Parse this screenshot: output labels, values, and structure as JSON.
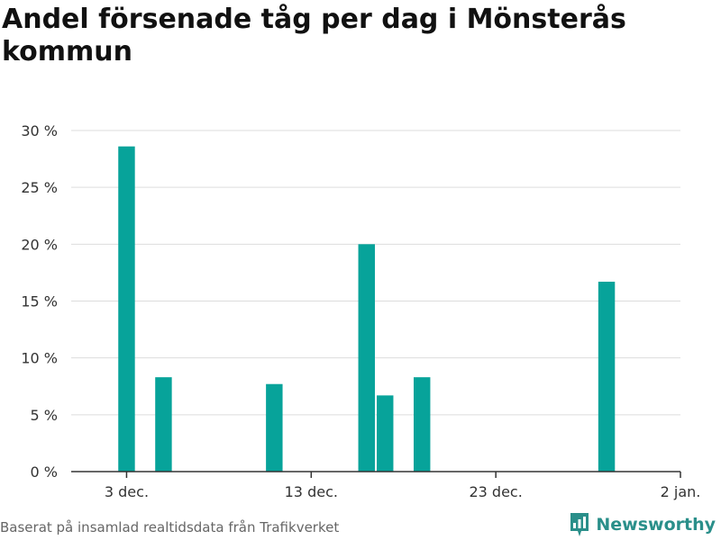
{
  "title": "Andel försenade tåg per dag i Mönsterås kommun",
  "source": "Baserat på insamlad realtidsdata från Trafikverket",
  "brand": "Newsworthy",
  "colors": {
    "bar": "#07a39a",
    "grid": "#dddddd",
    "axis": "#333333",
    "brand": "#2a8f8a"
  },
  "chart_data": {
    "type": "bar",
    "title": "Andel försenade tåg per dag i Mönsterås kommun",
    "xlabel": "",
    "ylabel": "",
    "x_start": "2024-11-30",
    "x_end": "2025-01-02",
    "x_ticks": [
      {
        "date": "2024-12-03",
        "label": "3 dec."
      },
      {
        "date": "2024-12-13",
        "label": "13 dec."
      },
      {
        "date": "2024-12-23",
        "label": "23 dec."
      },
      {
        "date": "2025-01-02",
        "label": "2 jan."
      }
    ],
    "ylim": [
      0,
      30
    ],
    "y_ticks": [
      {
        "value": 0,
        "label": "0 %"
      },
      {
        "value": 5,
        "label": "5 %"
      },
      {
        "value": 10,
        "label": "10 %"
      },
      {
        "value": 15,
        "label": "15 %"
      },
      {
        "value": 20,
        "label": "20 %"
      },
      {
        "value": 25,
        "label": "25 %"
      },
      {
        "value": 30,
        "label": "30 %"
      }
    ],
    "grid": true,
    "series": [
      {
        "points": [
          {
            "date": "2024-12-03",
            "value": 28.6
          },
          {
            "date": "2024-12-05",
            "value": 8.3
          },
          {
            "date": "2024-12-11",
            "value": 7.7
          },
          {
            "date": "2024-12-16",
            "value": 20.0
          },
          {
            "date": "2024-12-17",
            "value": 6.7
          },
          {
            "date": "2024-12-19",
            "value": 8.3
          },
          {
            "date": "2024-12-29",
            "value": 16.7
          }
        ]
      }
    ]
  }
}
